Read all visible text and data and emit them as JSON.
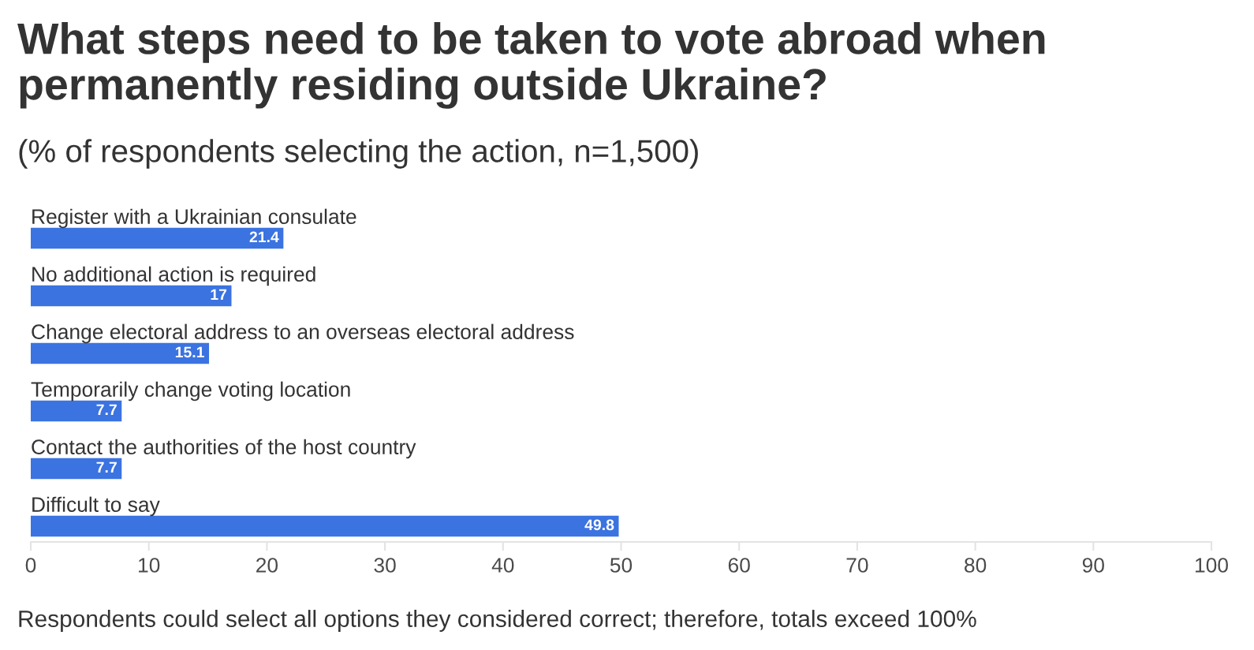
{
  "chart_data": {
    "type": "bar",
    "orientation": "horizontal",
    "title": "What steps need to be taken to vote abroad when permanently residing outside Ukraine?",
    "subtitle": "(% of respondents selecting the action, n=1,500)",
    "categories": [
      "Register with a Ukrainian consulate",
      "No additional action is required",
      "Change electoral address to an overseas electoral address",
      "Temporarily change voting location",
      "Contact the authorities of the host country",
      "Difficult to say"
    ],
    "values": [
      21.4,
      17,
      15.1,
      7.7,
      7.7,
      49.8
    ],
    "color": "#3b73e0",
    "xlim": [
      0,
      100
    ],
    "xticks": [
      0,
      10,
      20,
      30,
      40,
      50,
      60,
      70,
      80,
      90,
      100
    ],
    "data_labels": true,
    "annotations": [
      "Respondents could select all options they considered correct; therefore, totals exceed 100%"
    ]
  }
}
